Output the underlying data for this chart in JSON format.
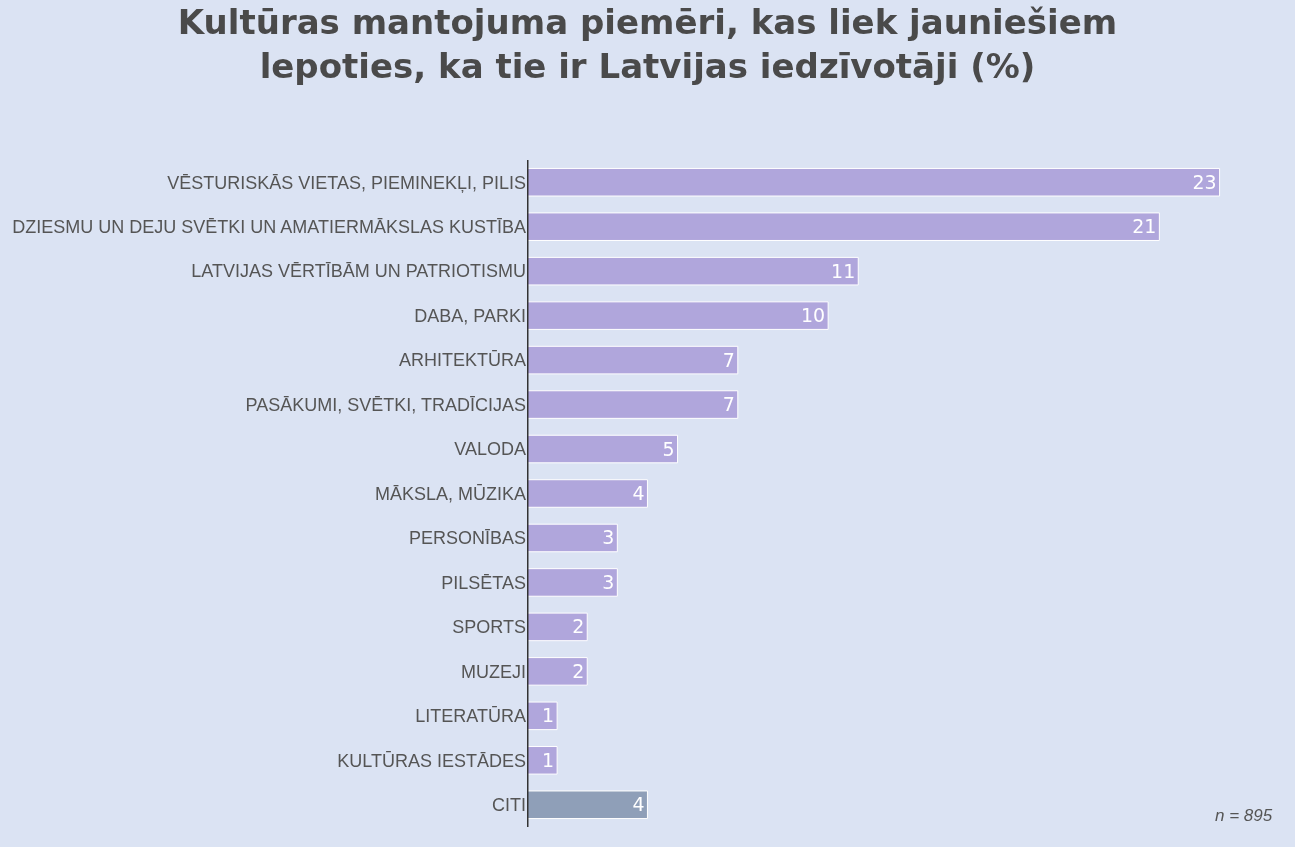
{
  "chart_data": {
    "type": "bar",
    "orientation": "horizontal",
    "title": "Kultūras mantojuma piemēri, kas liek jauniešiem lepoties, ka tie ir Latvijas iedzīvotāji (%)",
    "categories": [
      "VĒSTURISKĀS VIETAS, PIEMINEKĻI, PILIS",
      "DZIESMU UN DEJU SVĒTKI UN AMATIERMĀKSLAS KUSTĪBA",
      "LATVIJAS VĒRTĪBĀM UN PATRIOTISMU",
      "DABA, PARKI",
      "ARHITEKTŪRA",
      "PASĀKUMI, SVĒTKI, TRADĪCIJAS",
      "VALODA",
      "MĀKSLA, MŪZIKA",
      "PERSONĪBAS",
      "PILSĒTAS",
      "SPORTS",
      "MUZEJI",
      "LITERATŪRA",
      "KULTŪRAS IESTĀDES",
      "CITI"
    ],
    "values": [
      23,
      21,
      11,
      10,
      7,
      7,
      5,
      4,
      3,
      3,
      2,
      2,
      1,
      1,
      4
    ],
    "colors": [
      "#b0a6dc",
      "#b0a6dc",
      "#b0a6dc",
      "#b0a6dc",
      "#b0a6dc",
      "#b0a6dc",
      "#b0a6dc",
      "#b0a6dc",
      "#b0a6dc",
      "#b0a6dc",
      "#b0a6dc",
      "#b0a6dc",
      "#b0a6dc",
      "#b0a6dc",
      "#8f9fb8"
    ],
    "data_labels": true,
    "annotations": [
      "n = 895"
    ]
  }
}
